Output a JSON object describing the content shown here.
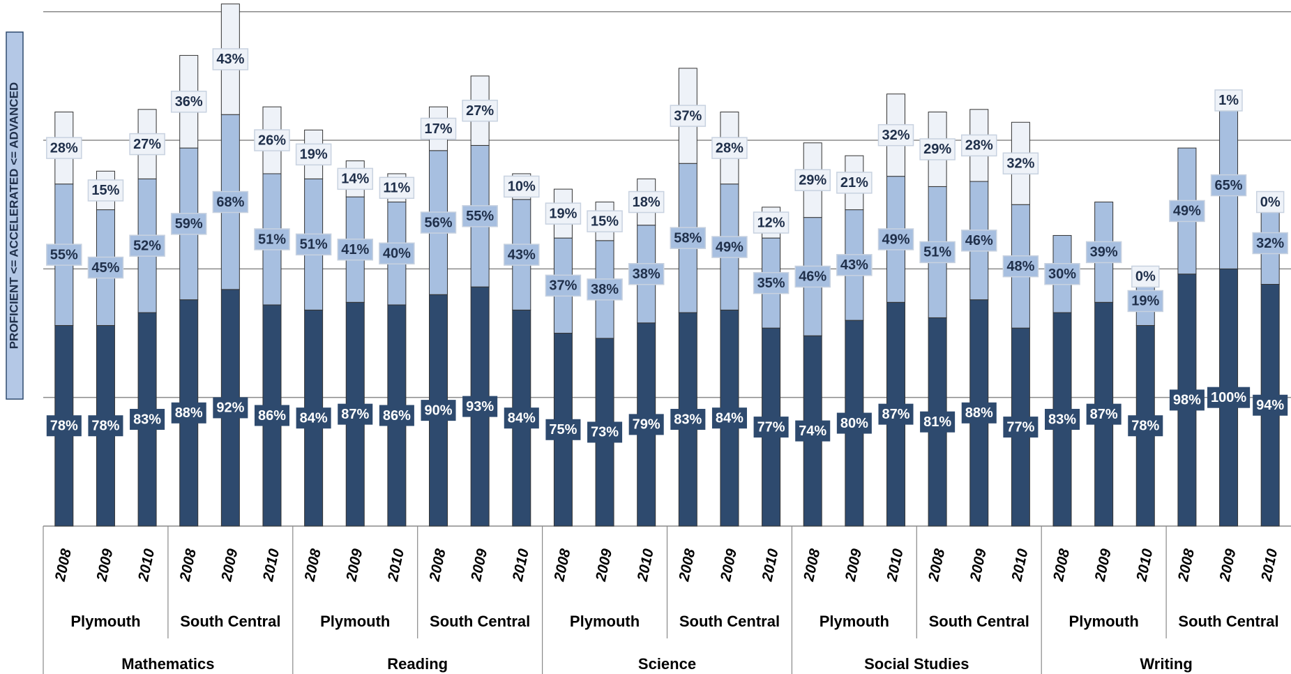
{
  "chart_data": {
    "type": "bar",
    "stacked": true,
    "y_label": "PROFICIENT <= ACCELERATED <= ADVANCED",
    "categories": [
      "2008",
      "2009",
      "2010",
      "2008",
      "2009",
      "2010",
      "2008",
      "2009",
      "2010",
      "2008",
      "2009",
      "2010",
      "2008",
      "2009",
      "2010",
      "2008",
      "2009",
      "2010",
      "2008",
      "2009",
      "2010",
      "2008",
      "2009",
      "2010",
      "2008",
      "2009",
      "2010",
      "2008",
      "2009",
      "2010"
    ],
    "groups": [
      "Plymouth",
      "South Central",
      "Plymouth",
      "South Central",
      "Plymouth",
      "South Central",
      "Plymouth",
      "South Central",
      "Plymouth",
      "South Central"
    ],
    "subjects": [
      "Mathematics",
      "Reading",
      "Science",
      "Social Studies",
      "Writing"
    ],
    "series": [
      {
        "color": "#2e4a6e",
        "label_color": "#ffffff",
        "values": [
          78,
          78,
          83,
          88,
          92,
          86,
          84,
          87,
          86,
          90,
          93,
          84,
          75,
          73,
          79,
          83,
          84,
          77,
          74,
          80,
          87,
          81,
          88,
          77,
          83,
          87,
          78,
          98,
          100,
          94
        ],
        "value_labels": [
          "78%",
          "78%",
          "83%",
          "88%",
          "92%",
          "86%",
          "84%",
          "87%",
          "86%",
          "90%",
          "93%",
          "84%",
          "75%",
          "73%",
          "79%",
          "83%",
          "84%",
          "77%",
          "74%",
          "80%",
          "87%",
          "81%",
          "88%",
          "77%",
          "83%",
          "87%",
          "78%",
          "98%",
          "100%",
          "94%"
        ]
      },
      {
        "color": "#a7bfe0",
        "label_color": "#1f2f4a",
        "values": [
          55,
          45,
          52,
          59,
          68,
          51,
          51,
          41,
          40,
          56,
          55,
          43,
          37,
          38,
          38,
          58,
          49,
          35,
          46,
          43,
          49,
          51,
          46,
          48,
          30,
          39,
          19,
          49,
          65,
          32
        ],
        "value_labels": [
          "55%",
          "45%",
          "52%",
          "59%",
          "68%",
          "51%",
          "51%",
          "41%",
          "40%",
          "56%",
          "55%",
          "43%",
          "37%",
          "38%",
          "38%",
          "58%",
          "49%",
          "35%",
          "46%",
          "43%",
          "49%",
          "51%",
          "46%",
          "48%",
          "30%",
          "39%",
          "19%",
          "49%",
          "65%",
          "32%"
        ]
      },
      {
        "color": "#eef2f8",
        "label_color": "#1f2f4a",
        "values": [
          28,
          15,
          27,
          36,
          43,
          26,
          19,
          14,
          11,
          17,
          27,
          10,
          19,
          15,
          18,
          37,
          28,
          12,
          29,
          21,
          32,
          29,
          28,
          32,
          null,
          null,
          0,
          null,
          1,
          0
        ],
        "value_labels": [
          "28%",
          "15%",
          "27%",
          "36%",
          "43%",
          "26%",
          "19%",
          "14%",
          "11%",
          "17%",
          "27%",
          "10%",
          "19%",
          "15%",
          "18%",
          "37%",
          "28%",
          "12%",
          "29%",
          "21%",
          "32%",
          "29%",
          "28%",
          "32%",
          null,
          null,
          "0%",
          null,
          "1%",
          "0%"
        ]
      }
    ],
    "ylim": [
      0,
      204
    ],
    "yticks": [
      0,
      50,
      100,
      150,
      200
    ],
    "grid": true
  }
}
